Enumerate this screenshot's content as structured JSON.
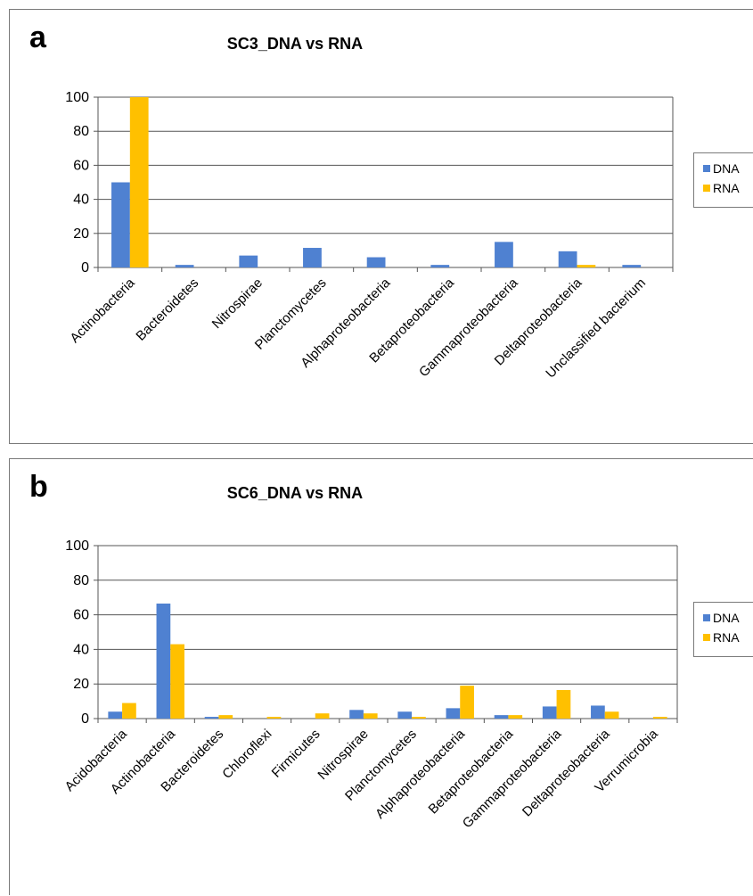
{
  "colors": {
    "dna": "#4f81d1",
    "rna": "#ffc000"
  },
  "chart_data": [
    {
      "type": "bar",
      "label": "a",
      "title": "SC3_DNA vs RNA",
      "categories": [
        "Actinobacteria",
        "Bacteroidetes",
        "Nitrospirae",
        "Planctomycetes",
        "Alphaproteobacteria",
        "Betaproteobacteria",
        "Gammaproteobacteria",
        "Deltaproteobacteria",
        "Unclassified bacterium"
      ],
      "series": [
        {
          "name": "DNA",
          "values": [
            50,
            1.5,
            7,
            11.5,
            6,
            1.5,
            15,
            9.5,
            1.5
          ]
        },
        {
          "name": "RNA",
          "values": [
            100,
            0,
            0,
            0,
            0,
            0,
            0,
            1.5,
            0
          ]
        }
      ],
      "yticks": [
        "0",
        "20",
        "40",
        "60",
        "80",
        "100"
      ],
      "ylim": [
        0,
        100
      ],
      "grid": true,
      "legend": "right"
    },
    {
      "type": "bar",
      "label": "b",
      "title": "SC6_DNA vs RNA",
      "categories": [
        "Acidobacteria",
        "Actinobacteria",
        "Bacteroidetes",
        "Chloroflexi",
        "Firmicutes",
        "Nitrospirae",
        "Planctomycetes",
        "Alphaproteobacteria",
        "Betaproteobacteria",
        "Gammaproteobacteria",
        "Deltaproteobacteria",
        "Verrumicrobia"
      ],
      "series": [
        {
          "name": "DNA",
          "values": [
            4,
            66.5,
            1,
            0,
            0,
            5,
            4,
            6,
            2,
            7,
            7.5,
            0
          ]
        },
        {
          "name": "RNA",
          "values": [
            9,
            43,
            2,
            1,
            3,
            3,
            1,
            19,
            2,
            16.5,
            4,
            1
          ]
        }
      ],
      "yticks": [
        "0",
        "20",
        "40",
        "60",
        "80",
        "100"
      ],
      "ylim": [
        0,
        100
      ],
      "grid": true,
      "legend": "right"
    }
  ]
}
